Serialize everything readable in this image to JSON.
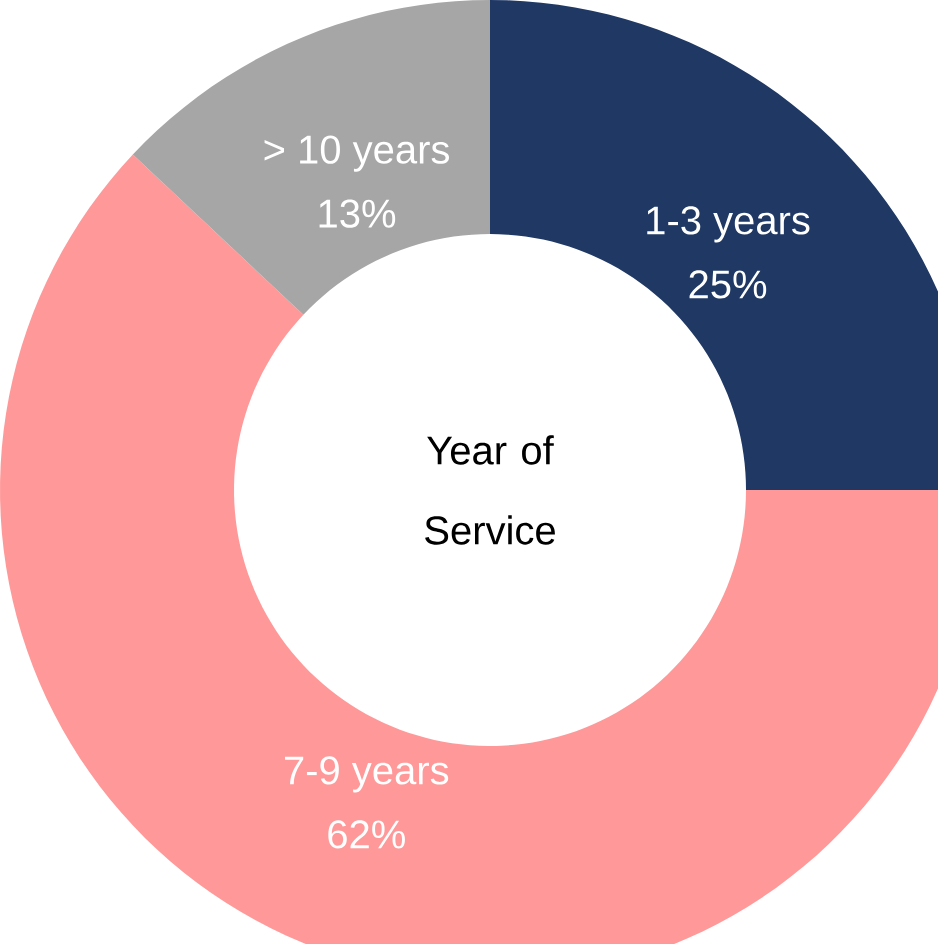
{
  "chart_data": {
    "type": "donut",
    "title": "Year of Service",
    "categories": [
      "1-3 years",
      "7-9 years",
      "> 10 years"
    ],
    "values": [
      25,
      62,
      13
    ],
    "value_labels": [
      "25%",
      "62%",
      "13%"
    ],
    "colors": [
      "#1f3864",
      "#ff9999",
      "#a6a6a6"
    ]
  }
}
